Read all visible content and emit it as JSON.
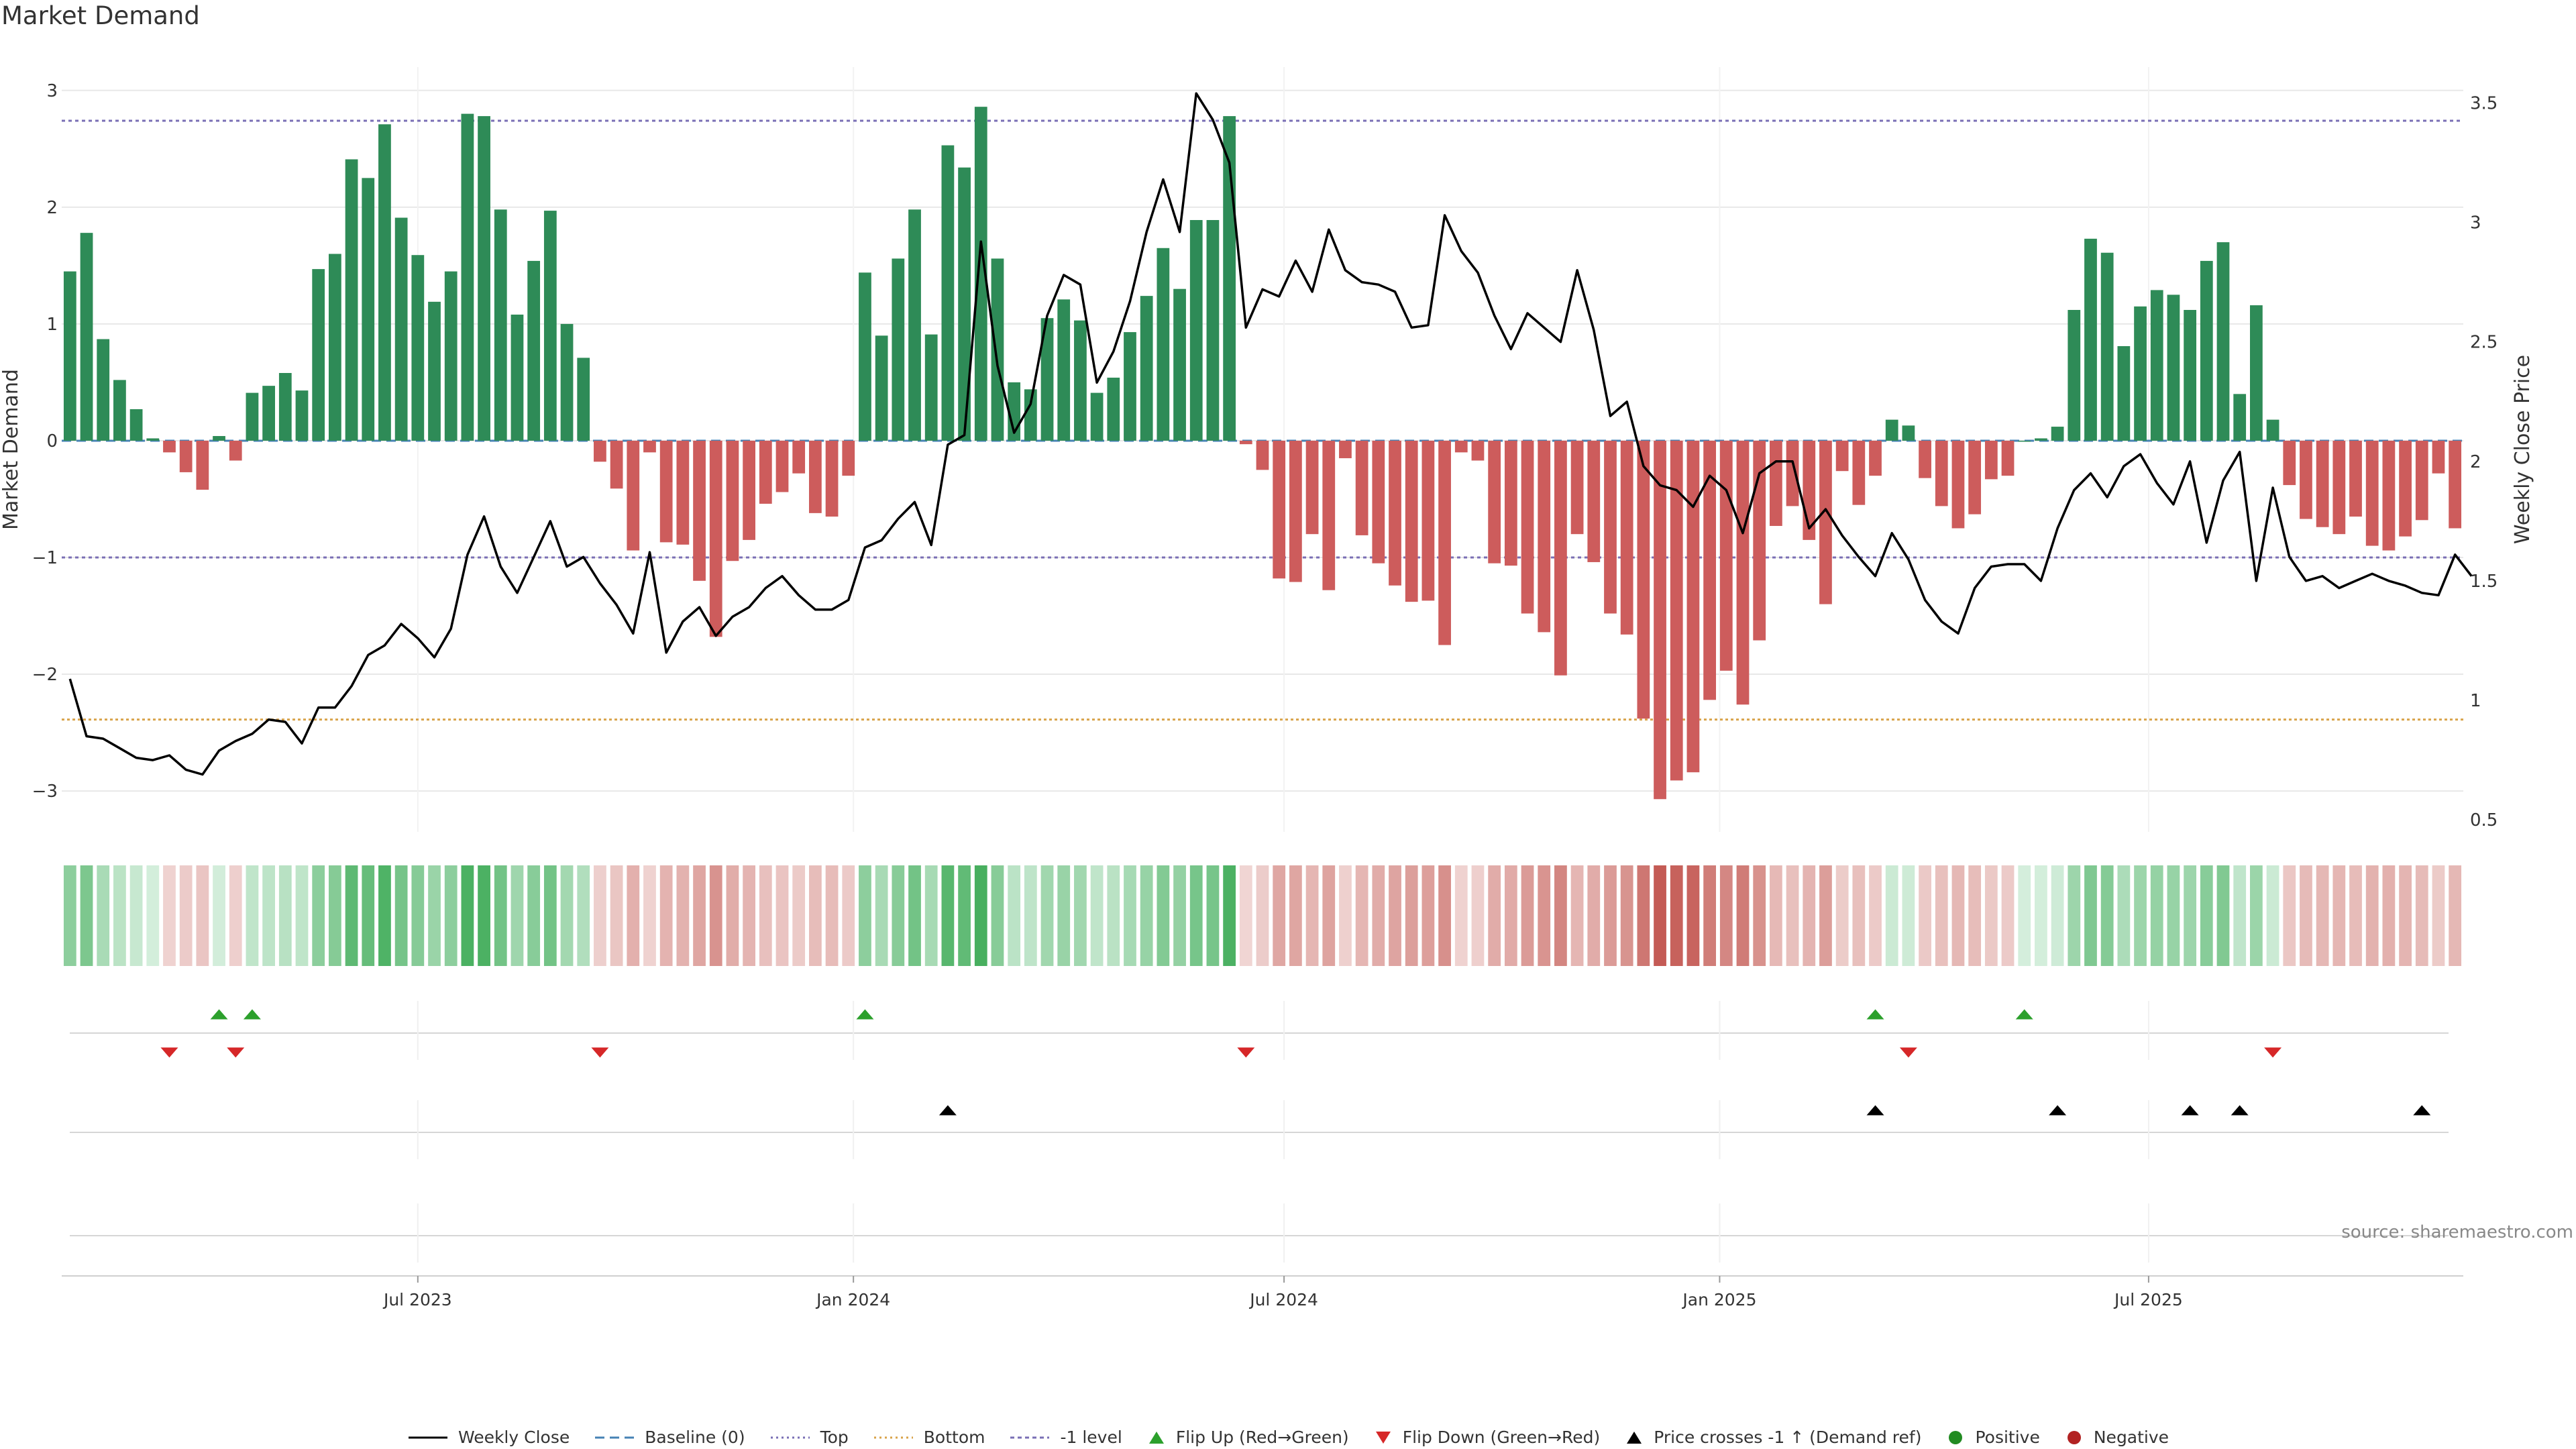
{
  "title": "Market Demand",
  "source": "source: sharemaestro.com",
  "chart_data": {
    "type": "bar+line",
    "title": "Market Demand",
    "ylabel_left": "Market Demand",
    "ylabel_right": "Weekly Close Price",
    "ylim_left": [
      -3.35,
      3.2
    ],
    "ylim_right": [
      0.45,
      3.65
    ],
    "yticks_left": [
      3,
      2,
      1,
      0,
      -1,
      -2,
      -3
    ],
    "yticks_left_labels": [
      "3",
      "2",
      "1",
      "0",
      "−1",
      "−2",
      "−3"
    ],
    "yticks_right": [
      3.5,
      3,
      2.5,
      2,
      1.5,
      1,
      0.5
    ],
    "yticks_right_labels": [
      "3.5",
      "3",
      "2.5",
      "2",
      "1.5",
      "1",
      "0.5"
    ],
    "x_tick_labels": [
      {
        "label": "Jul 2023",
        "index": 21.5
      },
      {
        "label": "Jan 2024",
        "index": 47.8
      },
      {
        "label": "Jul 2024",
        "index": 73.8
      },
      {
        "label": "Jan 2025",
        "index": 100.1
      },
      {
        "label": "Jul 2025",
        "index": 126.0
      }
    ],
    "reference_lines": [
      {
        "name": "Top",
        "axis": "left",
        "value": 2.74,
        "color": "#7a6fb5"
      },
      {
        "name": "-1 level",
        "axis": "left",
        "value": -1.0,
        "color": "#7a6fb5"
      },
      {
        "name": "Bottom",
        "axis": "right",
        "value": 0.92,
        "color": "#d9a34a"
      }
    ],
    "demand": [
      1.45,
      1.78,
      0.87,
      0.52,
      0.27,
      0.02,
      -0.1,
      -0.27,
      -0.42,
      0.04,
      -0.17,
      0.41,
      0.47,
      0.58,
      0.43,
      1.47,
      1.6,
      2.41,
      2.25,
      2.71,
      1.91,
      1.59,
      1.19,
      1.45,
      2.8,
      2.78,
      1.98,
      1.08,
      1.54,
      1.97,
      1.0,
      0.71,
      -0.18,
      -0.41,
      -0.94,
      -0.1,
      -0.87,
      -0.89,
      -1.2,
      -1.68,
      -1.03,
      -0.85,
      -0.54,
      -0.44,
      -0.28,
      -0.62,
      -0.65,
      -0.3,
      1.44,
      0.9,
      1.56,
      1.98,
      0.91,
      2.53,
      2.34,
      2.86,
      1.56,
      0.5,
      0.44,
      1.05,
      1.21,
      1.03,
      0.41,
      0.54,
      0.93,
      1.24,
      1.65,
      1.3,
      1.89,
      1.89,
      2.78,
      -0.03,
      -0.25,
      -1.18,
      -1.21,
      -0.8,
      -1.28,
      -0.15,
      -0.81,
      -1.05,
      -1.24,
      -1.38,
      -1.37,
      -1.75,
      -0.1,
      -0.17,
      -1.05,
      -1.07,
      -1.48,
      -1.64,
      -2.01,
      -0.8,
      -1.04,
      -1.48,
      -1.66,
      -2.38,
      -3.07,
      -2.91,
      -2.84,
      -2.22,
      -1.97,
      -2.26,
      -1.71,
      -0.73,
      -0.56,
      -0.85,
      -1.4,
      -0.26,
      -0.55,
      -0.3,
      0.18,
      0.13,
      -0.32,
      -0.56,
      -0.75,
      -0.63,
      -0.33,
      -0.3,
      0.0,
      0.02,
      0.12,
      1.12,
      1.73,
      1.61,
      0.81,
      1.15,
      1.29,
      1.25,
      1.12,
      1.54,
      1.7,
      0.4,
      1.16,
      0.18,
      -0.38,
      -0.67,
      -0.74,
      -0.8,
      -0.65,
      -0.9,
      -0.94,
      -0.82,
      -0.68,
      -0.28,
      -0.75
    ],
    "weekly_close": [
      1.09,
      0.85,
      0.84,
      0.8,
      0.76,
      0.75,
      0.77,
      0.71,
      0.69,
      0.79,
      0.83,
      0.86,
      0.92,
      0.91,
      0.82,
      0.97,
      0.97,
      1.06,
      1.19,
      1.23,
      1.32,
      1.26,
      1.18,
      1.3,
      1.61,
      1.77,
      1.56,
      1.45,
      1.6,
      1.75,
      1.56,
      1.6,
      1.49,
      1.4,
      1.28,
      1.62,
      1.2,
      1.33,
      1.39,
      1.27,
      1.35,
      1.39,
      1.47,
      1.52,
      1.44,
      1.38,
      1.38,
      1.42,
      1.64,
      1.67,
      1.76,
      1.83,
      1.65,
      2.07,
      2.11,
      2.92,
      2.4,
      2.12,
      2.24,
      2.61,
      2.78,
      2.74,
      2.33,
      2.46,
      2.67,
      2.96,
      3.18,
      2.96,
      3.54,
      3.43,
      3.25,
      2.56,
      2.72,
      2.69,
      2.84,
      2.71,
      2.97,
      2.8,
      2.75,
      2.74,
      2.71,
      2.56,
      2.57,
      3.03,
      2.88,
      2.79,
      2.61,
      2.47,
      2.62,
      2.56,
      2.5,
      2.8,
      2.55,
      2.19,
      2.25,
      1.98,
      1.9,
      1.88,
      1.81,
      1.94,
      1.88,
      1.7,
      1.95,
      2.0,
      2.0,
      1.72,
      1.8,
      1.69,
      1.6,
      1.52,
      1.7,
      1.59,
      1.42,
      1.33,
      1.28,
      1.47,
      1.56,
      1.57,
      1.57,
      1.5,
      1.72,
      1.88,
      1.95,
      1.85,
      1.98,
      2.03,
      1.91,
      1.82,
      2.0,
      1.66,
      1.92,
      2.04,
      1.5,
      1.89,
      1.6,
      1.5,
      1.52,
      1.47,
      1.5,
      1.53,
      1.5,
      1.48,
      1.45,
      1.44,
      1.61,
      1.52
    ],
    "flip_up_index": [
      9,
      11,
      48,
      109,
      118
    ],
    "flip_down_index": [
      6,
      10,
      32,
      71,
      111,
      133
    ],
    "price_cross_index": [
      53,
      109,
      120,
      128,
      131,
      142
    ],
    "legend": [
      "Weekly Close",
      "Baseline (0)",
      "Top",
      "Bottom",
      "-1 level",
      "Flip Up (Red→Green)",
      "Flip Down (Green→Red)",
      "Price crosses -1 ↑ (Demand ref)",
      "Positive",
      "Negative"
    ]
  },
  "colors": {
    "positive_bar": "#2e8b57",
    "negative_bar": "#cd5c5c",
    "price_line": "#000000",
    "baseline": "#4682b4",
    "top_line": "#7a6fb5",
    "bottom_line": "#d9a34a",
    "flip_up": "#2ca02c",
    "flip_down": "#d62728",
    "price_cross": "#000000",
    "positive_dot": "#228b22",
    "negative_dot": "#b22222",
    "grid": "#e8e8e8",
    "axis_text": "#333333"
  }
}
